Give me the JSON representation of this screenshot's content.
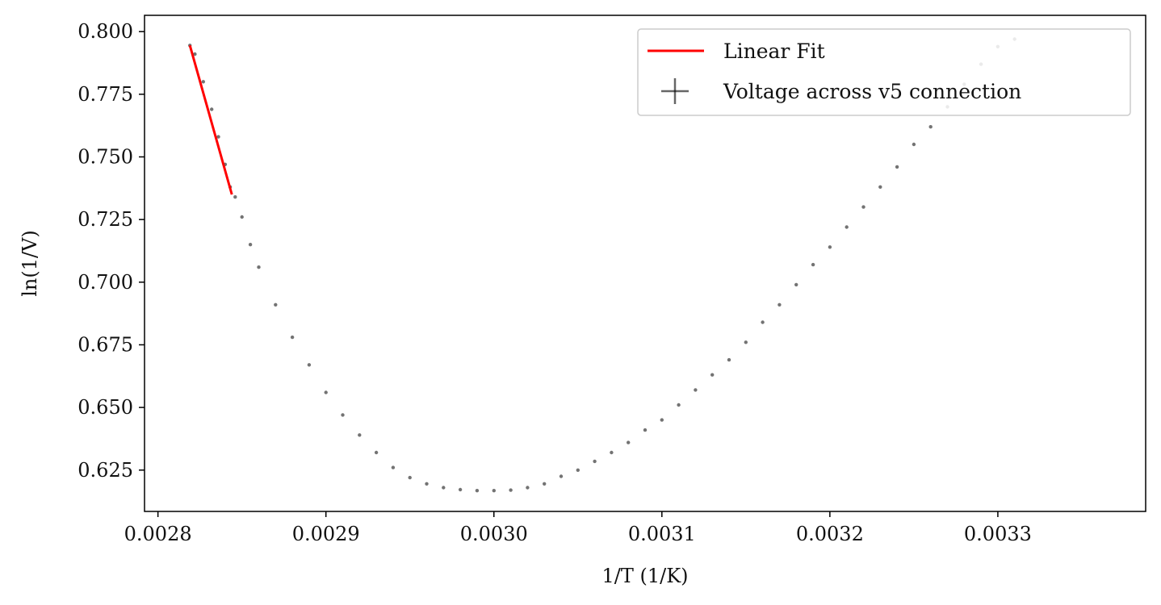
{
  "chart_data": {
    "type": "scatter",
    "title": "",
    "xlabel": "1/T (1/K)",
    "ylabel": "ln(1/V)",
    "xlim": [
      0.002792,
      0.003388
    ],
    "ylim": [
      0.6085,
      0.8065
    ],
    "xticks": [
      {
        "value": 0.0028,
        "label": "0.0028"
      },
      {
        "value": 0.0029,
        "label": "0.0029"
      },
      {
        "value": 0.003,
        "label": "0.0030"
      },
      {
        "value": 0.0031,
        "label": "0.0031"
      },
      {
        "value": 0.0032,
        "label": "0.0032"
      },
      {
        "value": 0.0033,
        "label": "0.0033"
      }
    ],
    "yticks": [
      {
        "value": 0.625,
        "label": "0.625"
      },
      {
        "value": 0.65,
        "label": "0.650"
      },
      {
        "value": 0.675,
        "label": "0.675"
      },
      {
        "value": 0.7,
        "label": "0.700"
      },
      {
        "value": 0.725,
        "label": "0.725"
      },
      {
        "value": 0.75,
        "label": "0.750"
      },
      {
        "value": 0.775,
        "label": "0.775"
      },
      {
        "value": 0.8,
        "label": "0.800"
      }
    ],
    "grid": false,
    "legend_position": "top-right",
    "series": [
      {
        "name": "Voltage across v5 connection",
        "kind": "scatter-errorbar",
        "color": "#000000",
        "opacity": 0.55,
        "points": [
          [
            0.002819,
            0.7945
          ],
          [
            0.002822,
            0.791
          ],
          [
            0.002827,
            0.78
          ],
          [
            0.002832,
            0.769
          ],
          [
            0.002836,
            0.758
          ],
          [
            0.00284,
            0.747
          ],
          [
            0.002843,
            0.738
          ],
          [
            0.002846,
            0.734
          ],
          [
            0.00285,
            0.726
          ],
          [
            0.002855,
            0.715
          ],
          [
            0.00286,
            0.706
          ],
          [
            0.00287,
            0.691
          ],
          [
            0.00288,
            0.678
          ],
          [
            0.00289,
            0.667
          ],
          [
            0.0029,
            0.656
          ],
          [
            0.00291,
            0.647
          ],
          [
            0.00292,
            0.639
          ],
          [
            0.00293,
            0.632
          ],
          [
            0.00294,
            0.626
          ],
          [
            0.00295,
            0.622
          ],
          [
            0.00296,
            0.6195
          ],
          [
            0.00297,
            0.618
          ],
          [
            0.00298,
            0.6172
          ],
          [
            0.00299,
            0.6168
          ],
          [
            0.003,
            0.6168
          ],
          [
            0.00301,
            0.617
          ],
          [
            0.00302,
            0.618
          ],
          [
            0.00303,
            0.6195
          ],
          [
            0.00304,
            0.6225
          ],
          [
            0.00305,
            0.625
          ],
          [
            0.00306,
            0.6285
          ],
          [
            0.00307,
            0.632
          ],
          [
            0.00308,
            0.636
          ],
          [
            0.00309,
            0.641
          ],
          [
            0.0031,
            0.645
          ],
          [
            0.00311,
            0.651
          ],
          [
            0.00312,
            0.657
          ],
          [
            0.00313,
            0.663
          ],
          [
            0.00314,
            0.669
          ],
          [
            0.00315,
            0.676
          ],
          [
            0.00316,
            0.684
          ],
          [
            0.00317,
            0.691
          ],
          [
            0.00318,
            0.699
          ],
          [
            0.00319,
            0.707
          ],
          [
            0.0032,
            0.714
          ],
          [
            0.00321,
            0.722
          ],
          [
            0.00322,
            0.73
          ],
          [
            0.00323,
            0.738
          ],
          [
            0.00324,
            0.746
          ],
          [
            0.00325,
            0.755
          ],
          [
            0.00326,
            0.762
          ],
          [
            0.00327,
            0.77
          ],
          [
            0.00328,
            0.779
          ],
          [
            0.00329,
            0.787
          ],
          [
            0.0033,
            0.794
          ],
          [
            0.00331,
            0.797
          ]
        ]
      },
      {
        "name": "Linear Fit",
        "kind": "line",
        "color": "#ff0000",
        "points": [
          [
            0.002819,
            0.7945
          ],
          [
            0.002844,
            0.735
          ]
        ]
      }
    ]
  }
}
